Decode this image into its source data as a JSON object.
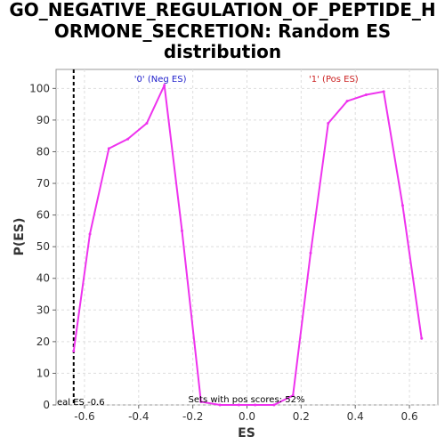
{
  "title_lines": [
    "GO_NEGATIVE_REGULATION_OF_PEPTIDE_H",
    "ORMONE_SECRETION: Random ES",
    "distribution"
  ],
  "chart_data": {
    "type": "line",
    "title": "GO_NEGATIVE_REGULATION_OF_PEPTIDE_HORMONE_SECRETION: Random ES distribution",
    "xlabel": "ES",
    "ylabel": "P(ES)",
    "xlim": [
      -0.705,
      0.705
    ],
    "ylim": [
      0,
      106
    ],
    "xticks": [
      -0.6,
      -0.4,
      -0.2,
      0.0,
      0.2,
      0.4,
      0.6
    ],
    "xtick_labels": [
      "-0.6",
      "-0.4",
      "-0.2",
      "0.0",
      "0.2",
      "0.4",
      "0.6"
    ],
    "yticks": [
      0,
      10,
      20,
      30,
      40,
      50,
      60,
      70,
      80,
      90,
      100
    ],
    "ytick_labels": [
      "0",
      "10",
      "20",
      "30",
      "40",
      "50",
      "60",
      "70",
      "80",
      "90",
      "100"
    ],
    "grid": true,
    "series": [
      {
        "color": "#ee33ee",
        "x": [
          -0.64,
          -0.58,
          -0.51,
          -0.44,
          -0.37,
          -0.305,
          -0.24,
          -0.17,
          -0.1,
          -0.03,
          0.03,
          0.1,
          0.17,
          0.235,
          0.3,
          0.37,
          0.44,
          0.505,
          0.575,
          0.645
        ],
        "y": [
          17,
          54,
          81,
          84,
          89,
          101,
          55,
          1,
          0,
          0,
          0,
          0,
          3,
          48,
          89,
          96,
          98,
          99,
          63,
          21
        ]
      }
    ],
    "marker_line": {
      "x": -0.64,
      "style": "dashed",
      "color": "#000000"
    },
    "annotations": {
      "neg_label": "'0' (Neg ES)",
      "neg_color": "#2222cc",
      "neg_x": -0.32,
      "pos_label": "'1' (Pos ES)",
      "pos_color": "#cc2222",
      "pos_x": 0.32,
      "real_es": "eal ES -0.6",
      "pos_scores": "Sets with pos scores: 52%"
    }
  }
}
